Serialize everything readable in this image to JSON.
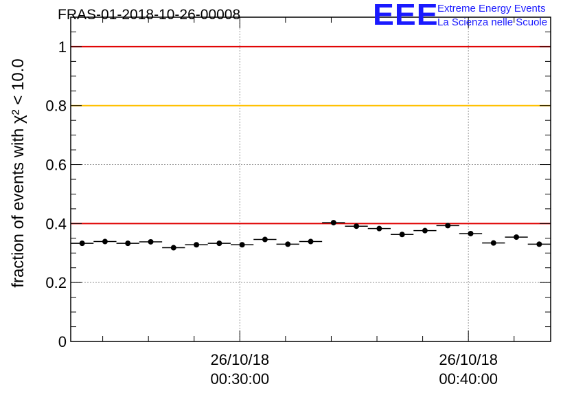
{
  "title": "FRAS-01-2018-10-26-00008",
  "logo": {
    "letters": "EEE",
    "line1": "Extreme Energy Events",
    "line2": "La Scienza nelle Scuole",
    "color": "#1a1aff"
  },
  "chart_data": {
    "type": "scatter",
    "ylabel": "fraction of events with χ² < 10.0",
    "ylim": [
      0,
      1.1
    ],
    "y_ticks": [
      "0",
      "0.2",
      "0.4",
      "0.6",
      "0.8",
      "1"
    ],
    "y_tick_values": [
      0,
      0.2,
      0.4,
      0.6,
      0.8,
      1.0
    ],
    "x_tick_labels": [
      {
        "date": "26/10/18",
        "time": "00:30:00",
        "minute": 30
      },
      {
        "date": "26/10/18",
        "time": "00:40:00",
        "minute": 40
      }
    ],
    "xlim_minutes": [
      22.6,
      43.6
    ],
    "bin_width_minutes": 1,
    "grid": true,
    "reference_lines": [
      {
        "y": 1.0,
        "color": "#e00000"
      },
      {
        "y": 0.8,
        "color": "#ffc000"
      },
      {
        "y": 0.4,
        "color": "#e00000"
      }
    ],
    "series": [
      {
        "x_minutes": [
          23.1,
          24.1,
          25.1,
          26.1,
          27.1,
          28.1,
          29.1,
          30.1,
          31.1,
          32.1,
          33.1,
          34.1,
          35.1,
          36.1,
          37.1,
          38.1,
          39.1,
          40.1,
          41.1,
          42.1,
          43.1
        ],
        "values": [
          0.333,
          0.339,
          0.333,
          0.338,
          0.318,
          0.328,
          0.333,
          0.328,
          0.346,
          0.33,
          0.339,
          0.403,
          0.391,
          0.383,
          0.363,
          0.376,
          0.393,
          0.366,
          0.334,
          0.354,
          0.33
        ]
      }
    ]
  }
}
